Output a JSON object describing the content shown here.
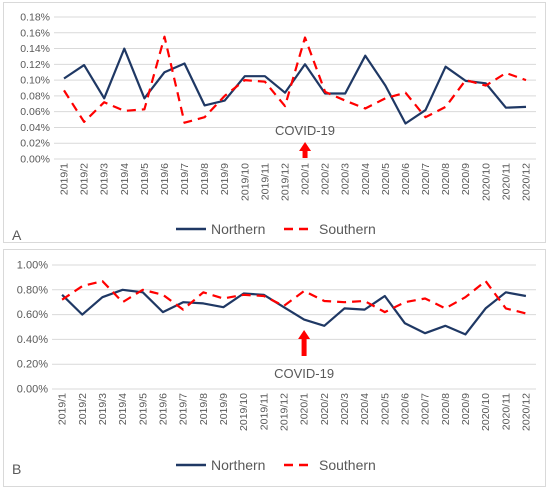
{
  "chart_data": [
    {
      "type": "line",
      "panel_label": "A",
      "annotation": "COVID-19",
      "annotation_category": "2020/1",
      "ylim": [
        0,
        0.18
      ],
      "ytick_step": 0.02,
      "ytick_format": "0.00%",
      "grid": true,
      "legend_position": "bottom",
      "categories": [
        "2019/1",
        "2019/2",
        "2019/3",
        "2019/4",
        "2019/5",
        "2019/6",
        "2019/7",
        "2019/8",
        "2019/9",
        "2019/10",
        "2019/11",
        "2019/12",
        "2020/1",
        "2020/2",
        "2020/3",
        "2020/4",
        "2020/5",
        "2020/6",
        "2020/7",
        "2020/8",
        "2020/9",
        "2020/10",
        "2020/11",
        "2020/12"
      ],
      "series": [
        {
          "name": "Northern",
          "style": "solid",
          "color": "#1f3864",
          "values": [
            0.102,
            0.119,
            0.077,
            0.14,
            0.077,
            0.11,
            0.121,
            0.068,
            0.074,
            0.105,
            0.105,
            0.084,
            0.12,
            0.083,
            0.083,
            0.131,
            0.093,
            0.045,
            0.062,
            0.117,
            0.099,
            0.096,
            0.065,
            0.066
          ]
        },
        {
          "name": "Southern",
          "style": "dashed",
          "color": "#ff0000",
          "values": [
            0.087,
            0.047,
            0.072,
            0.061,
            0.063,
            0.155,
            0.046,
            0.053,
            0.08,
            0.1,
            0.098,
            0.067,
            0.154,
            0.085,
            0.074,
            0.064,
            0.077,
            0.084,
            0.053,
            0.066,
            0.1,
            0.093,
            0.109,
            0.1
          ]
        }
      ]
    },
    {
      "type": "line",
      "panel_label": "B",
      "annotation": "COVID-19",
      "annotation_category": "2020/1",
      "ylim": [
        0,
        1.0
      ],
      "ytick_step": 0.2,
      "ytick_format": "0.00%",
      "grid": true,
      "legend_position": "bottom",
      "categories": [
        "2019/1",
        "2019/2",
        "2019/3",
        "2019/4",
        "2019/5",
        "2019/6",
        "2019/7",
        "2019/8",
        "2019/9",
        "2019/10",
        "2019/11",
        "2019/12",
        "2020/1",
        "2020/2",
        "2020/3",
        "2020/4",
        "2020/5",
        "2020/6",
        "2020/7",
        "2020/8",
        "2020/9",
        "2020/10",
        "2020/11",
        "2020/12"
      ],
      "series": [
        {
          "name": "Northern",
          "style": "solid",
          "color": "#1f3864",
          "values": [
            0.76,
            0.6,
            0.74,
            0.8,
            0.78,
            0.62,
            0.7,
            0.69,
            0.66,
            0.77,
            0.76,
            0.66,
            0.56,
            0.51,
            0.65,
            0.64,
            0.75,
            0.53,
            0.45,
            0.51,
            0.44,
            0.65,
            0.78,
            0.75
          ]
        },
        {
          "name": "Southern",
          "style": "dashed",
          "color": "#ff0000",
          "values": [
            0.72,
            0.83,
            0.87,
            0.7,
            0.8,
            0.76,
            0.64,
            0.78,
            0.73,
            0.76,
            0.75,
            0.67,
            0.79,
            0.71,
            0.7,
            0.71,
            0.62,
            0.7,
            0.73,
            0.65,
            0.74,
            0.87,
            0.65,
            0.61
          ]
        }
      ]
    }
  ]
}
